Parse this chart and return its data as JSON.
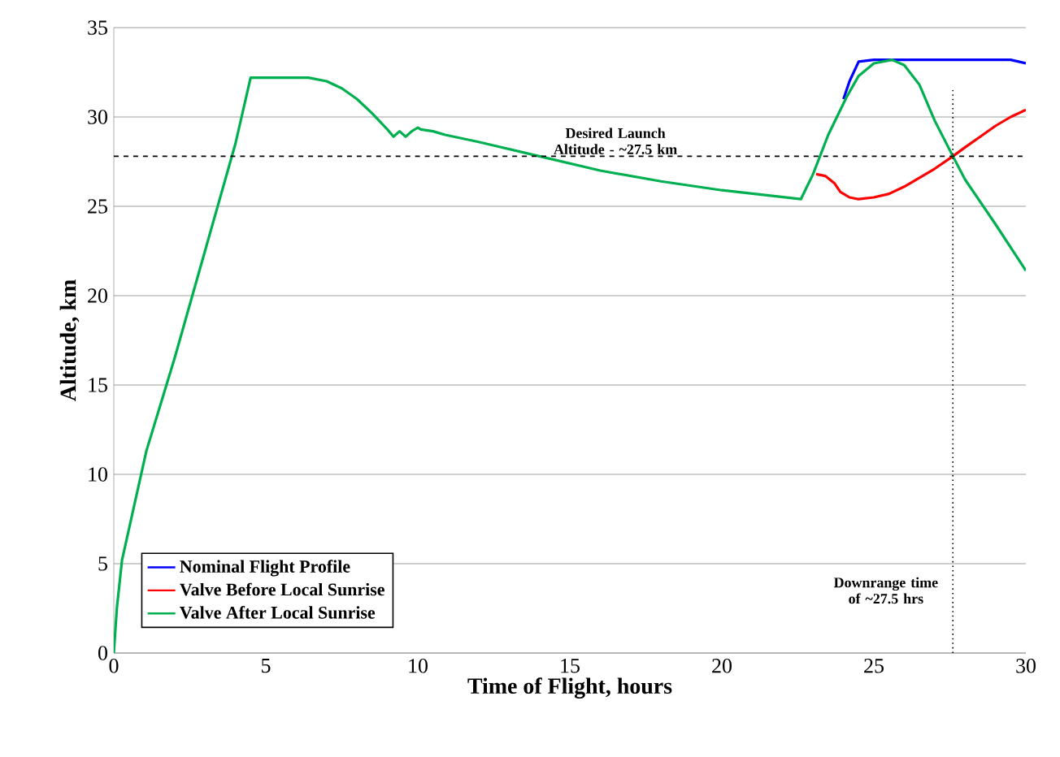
{
  "chart_data": {
    "type": "line",
    "xlabel": "Time of Flight, hours",
    "ylabel": "Altitude, km",
    "xlim": [
      0,
      30
    ],
    "ylim": [
      0,
      35
    ],
    "xticks": [
      0,
      5,
      10,
      15,
      20,
      25,
      30
    ],
    "yticks": [
      0,
      5,
      10,
      15,
      20,
      25,
      30,
      35
    ],
    "grid": "y",
    "legend": "bottom left",
    "marker": "none",
    "line_style": "solid",
    "series": [
      {
        "name": "Nominal Flight Profile",
        "color": "#0000ff",
        "x": [
          24.0,
          24.2,
          24.5,
          25.0,
          26.0,
          27.0,
          28.0,
          29.0,
          29.5,
          30.0
        ],
        "values": [
          31.0,
          32.0,
          33.1,
          33.2,
          33.2,
          33.2,
          33.2,
          33.2,
          33.2,
          33.0
        ]
      },
      {
        "name": "Valve Before Local Sunrise",
        "color": "#ff0000",
        "x": [
          23.1,
          23.4,
          23.7,
          23.9,
          24.2,
          24.5,
          25.0,
          25.5,
          26.0,
          26.5,
          27.0,
          27.6,
          28.0,
          28.5,
          29.0,
          29.5,
          30.0
        ],
        "values": [
          26.8,
          26.7,
          26.3,
          25.8,
          25.5,
          25.4,
          25.5,
          25.7,
          26.1,
          26.6,
          27.1,
          27.8,
          28.3,
          28.9,
          29.5,
          30.0,
          30.4
        ]
      },
      {
        "name": "Valve After Local Sunrise",
        "color": "#00b050",
        "x": [
          0,
          0.1,
          0.27,
          1.07,
          2.0,
          3.0,
          4.0,
          4.5,
          5.5,
          6.4,
          7.0,
          7.5,
          8.0,
          8.5,
          9.0,
          9.2,
          9.4,
          9.6,
          9.8,
          10.0,
          10.1,
          10.5,
          10.9,
          12.0,
          14.0,
          16.0,
          18.0,
          20.0,
          22.6,
          23.0,
          23.5,
          24.1,
          24.5,
          25.0,
          25.6,
          26.0,
          26.5,
          27.0,
          27.6,
          28.0,
          29.0,
          30.0
        ],
        "values": [
          0,
          2.5,
          5.2,
          11.3,
          16.5,
          22.5,
          28.5,
          32.2,
          32.2,
          32.2,
          32.0,
          31.6,
          31.0,
          30.2,
          29.3,
          28.9,
          29.2,
          28.9,
          29.2,
          29.4,
          29.3,
          29.2,
          29.0,
          28.6,
          27.8,
          27.0,
          26.4,
          25.9,
          25.4,
          26.8,
          29.0,
          31.1,
          32.3,
          33.0,
          33.2,
          32.9,
          31.8,
          29.8,
          27.8,
          26.5,
          24.0,
          21.4
        ]
      }
    ],
    "ref_lines": [
      {
        "axis": "y",
        "value": 27.8,
        "label": "Desired Launch Altitude - ~27.5 km",
        "color": "#000000",
        "line_style": "dashed"
      },
      {
        "axis": "x",
        "value": 27.6,
        "label": "Downrange time of ~27.5 hrs",
        "color": "#000000",
        "line_style": "dotted"
      }
    ]
  }
}
